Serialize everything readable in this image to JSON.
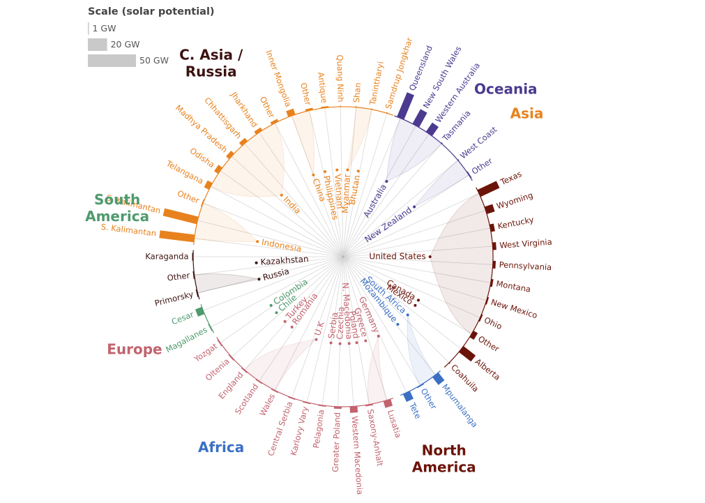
{
  "chart_data": {
    "type": "radial-hierarchy",
    "scale_legend": {
      "title": "Scale (solar potential)",
      "items": [
        {
          "label": "1 GW",
          "value": 1
        },
        {
          "label": "20 GW",
          "value": 20
        },
        {
          "label": "50 GW",
          "value": 50
        }
      ]
    },
    "colors": {
      "Asia": "#e8821e",
      "Oceania": "#4b3a8f",
      "North America": "#6b1409",
      "Africa": "#3a6fc4",
      "Europe": "#c2636e",
      "South America": "#4f9a6e",
      "C. Asia / Russia": "#3b1210"
    },
    "regions": [
      {
        "name": "Oceania",
        "angle": 45
      },
      {
        "name": "North America",
        "angle": 154
      },
      {
        "name": "Africa",
        "angle": 212
      },
      {
        "name": "Europe",
        "angle": 245
      },
      {
        "name": "South America",
        "angle": 281
      },
      {
        "name": "C. Asia / Russia",
        "angle": 325
      },
      {
        "name": "Asia",
        "angle": 53
      }
    ],
    "countries": [
      {
        "name": "Australia",
        "region": "Oceania",
        "angle": 30,
        "children": [
          {
            "name": "Queensland",
            "angle": 22.5,
            "value": 38
          },
          {
            "name": "New South Wales",
            "angle": 29,
            "value": 24
          },
          {
            "name": "Western Australia",
            "angle": 35,
            "value": 16
          },
          {
            "name": "Tasmania",
            "angle": 41,
            "value": 0
          }
        ]
      },
      {
        "name": "New Zealand",
        "region": "Oceania",
        "angle": 55,
        "children": [
          {
            "name": "West Coast",
            "angle": 50,
            "value": 0
          },
          {
            "name": "Other",
            "angle": 57,
            "value": 1
          }
        ]
      },
      {
        "name": "United States",
        "region": "North America",
        "angle": 90,
        "children": [
          {
            "name": "Texas",
            "angle": 65,
            "value": 30
          },
          {
            "name": "Wyoming",
            "angle": 72,
            "value": 12
          },
          {
            "name": "Kentucky",
            "angle": 79,
            "value": 6
          },
          {
            "name": "West Virginia",
            "angle": 86,
            "value": 5
          },
          {
            "name": "Pennsylvania",
            "angle": 93,
            "value": 4
          },
          {
            "name": "Montana",
            "angle": 100,
            "value": 3
          },
          {
            "name": "New Mexico",
            "angle": 107,
            "value": 2
          },
          {
            "name": "Ohio",
            "angle": 114,
            "value": 2
          },
          {
            "name": "Other",
            "angle": 121,
            "value": 7
          }
        ]
      },
      {
        "name": "Canada",
        "region": "North America",
        "angle": 120,
        "children": [
          {
            "name": "Alberta",
            "angle": 128,
            "value": 22
          }
        ]
      },
      {
        "name": "Mexico",
        "region": "North America",
        "angle": 124,
        "children": [
          {
            "name": "Coahuila",
            "angle": 135,
            "value": 0
          }
        ]
      },
      {
        "name": "South Africa",
        "region": "Africa",
        "angle": 132,
        "children": [
          {
            "name": "Mpumalanga",
            "angle": 142,
            "value": 14
          },
          {
            "name": "Other",
            "angle": 149,
            "value": 1
          }
        ]
      },
      {
        "name": "Mozambique",
        "region": "Africa",
        "angle": 141,
        "children": [
          {
            "name": "Tete",
            "angle": 155,
            "value": 12
          }
        ]
      },
      {
        "name": "Germany",
        "region": "Europe",
        "angle": 156,
        "children": [
          {
            "name": "Lusatia",
            "angle": 163,
            "value": 10
          },
          {
            "name": "Saxony-Anhalt",
            "angle": 170,
            "value": 2
          }
        ]
      },
      {
        "name": "Greece",
        "region": "Europe",
        "angle": 165,
        "children": [
          {
            "name": "Western Macedonia",
            "angle": 176,
            "value": 9
          }
        ]
      },
      {
        "name": "Poland",
        "region": "Europe",
        "angle": 171,
        "children": [
          {
            "name": "Greater Poland",
            "angle": 182,
            "value": 3
          }
        ]
      },
      {
        "name": "N. Macedonia",
        "region": "Europe",
        "angle": 176,
        "children": [
          {
            "name": "Pelagonia",
            "angle": 188,
            "value": 1
          }
        ]
      },
      {
        "name": "Czechia",
        "region": "Europe",
        "angle": 182,
        "children": [
          {
            "name": "Karlovy Vary",
            "angle": 194,
            "value": 1
          }
        ]
      },
      {
        "name": "Serbia",
        "region": "Europe",
        "angle": 188,
        "children": [
          {
            "name": "Central Serbia",
            "angle": 200,
            "value": 1
          }
        ]
      },
      {
        "name": "U.K",
        "region": "Europe",
        "angle": 198,
        "children": [
          {
            "name": "Wales",
            "angle": 207,
            "value": 1
          },
          {
            "name": "Scotland",
            "angle": 214,
            "value": 1
          },
          {
            "name": "England",
            "angle": 221,
            "value": 1
          }
        ]
      },
      {
        "name": "Romania",
        "region": "Europe",
        "angle": 216,
        "children": [
          {
            "name": "Oltenia",
            "angle": 228,
            "value": 1
          }
        ]
      },
      {
        "name": "Turkey",
        "region": "Europe",
        "angle": 222,
        "children": [
          {
            "name": "Yozgat",
            "angle": 235,
            "value": 1
          }
        ]
      },
      {
        "name": "Chile",
        "region": "South America",
        "angle": 230,
        "children": [
          {
            "name": "Magallanes",
            "angle": 242,
            "value": 1
          }
        ]
      },
      {
        "name": "Colombia",
        "region": "South America",
        "angle": 236,
        "children": [
          {
            "name": "Cesar",
            "angle": 249,
            "value": 10
          }
        ]
      },
      {
        "name": "Russia",
        "region": "C. Asia / Russia",
        "angle": 255,
        "children": [
          {
            "name": "Primorsky",
            "angle": 256,
            "value": 1
          },
          {
            "name": "Other",
            "angle": 263,
            "value": 1
          }
        ]
      },
      {
        "name": "Kazakhstan",
        "region": "C. Asia / Russia",
        "angle": 266,
        "children": [
          {
            "name": "Karaganda",
            "angle": 270,
            "value": 1
          }
        ]
      },
      {
        "name": "Indonesia",
        "region": "Asia",
        "angle": 280,
        "children": [
          {
            "name": "S. Kalimantan",
            "angle": 277,
            "value": 50
          },
          {
            "name": "S. Kalimantan",
            "angle": 284,
            "value": 50
          },
          {
            "name": "Other",
            "angle": 291,
            "value": 1
          }
        ]
      },
      {
        "name": "India",
        "region": "Asia",
        "angle": 315,
        "children": [
          {
            "name": "Telangana",
            "angle": 298,
            "value": 8
          },
          {
            "name": "Odisha",
            "angle": 305,
            "value": 7
          },
          {
            "name": "Madhya Pradesh",
            "angle": 312,
            "value": 6
          },
          {
            "name": "Chhattisgarh",
            "angle": 319,
            "value": 6
          },
          {
            "name": "Jharkhand",
            "angle": 326,
            "value": 5
          },
          {
            "name": "Other",
            "angle": 333,
            "value": 4
          }
        ]
      },
      {
        "name": "China",
        "region": "Asia",
        "angle": 340,
        "children": [
          {
            "name": "Inner Mongolia",
            "angle": 340,
            "value": 9
          },
          {
            "name": "Other",
            "angle": 347,
            "value": 3
          }
        ]
      },
      {
        "name": "Philippines",
        "region": "Asia",
        "angle": 348,
        "children": [
          {
            "name": "Antique",
            "angle": 353,
            "value": 2
          }
        ]
      },
      {
        "name": "Vietnam",
        "region": "Asia",
        "angle": 356,
        "children": [
          {
            "name": "Quang Ninh",
            "angle": 359,
            "value": 0
          }
        ]
      },
      {
        "name": "Myanmar",
        "region": "Asia",
        "angle": 3,
        "children": [
          {
            "name": "Shan",
            "angle": 5,
            "value": 0
          },
          {
            "name": "Tanintharyi",
            "angle": 11,
            "value": 0
          }
        ]
      },
      {
        "name": "Bhutan",
        "region": "Asia",
        "angle": 10,
        "children": [
          {
            "name": "Samdrup Jongkhar",
            "angle": 17,
            "value": 0
          }
        ]
      }
    ]
  }
}
